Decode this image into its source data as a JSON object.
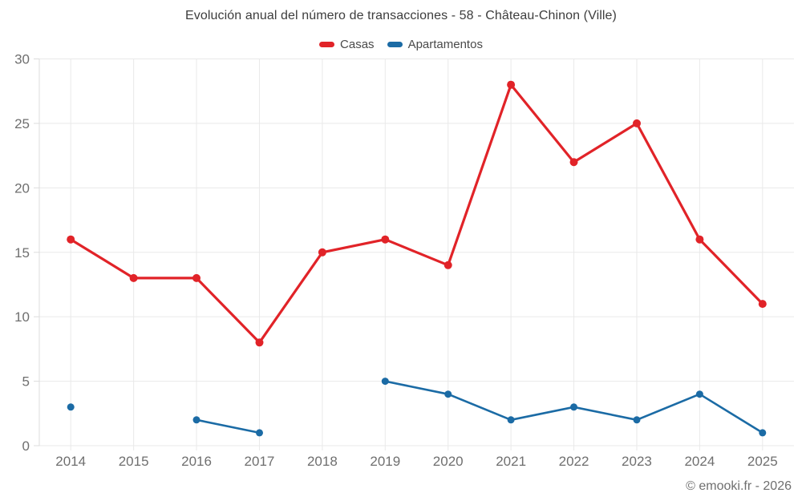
{
  "footer": {
    "credit": "© emooki.fr - 2026"
  },
  "chart_data": {
    "type": "line",
    "title": "Evolución anual del número de transacciones - 58 - Château-Chinon (Ville)",
    "categories": [
      "2014",
      "2015",
      "2016",
      "2017",
      "2018",
      "2019",
      "2020",
      "2021",
      "2022",
      "2023",
      "2024",
      "2025"
    ],
    "series": [
      {
        "name": "Casas",
        "color": "#e12328",
        "values": [
          16,
          13,
          13,
          8,
          15,
          16,
          14,
          28,
          22,
          25,
          16,
          11
        ]
      },
      {
        "name": "Apartamentos",
        "color": "#1b6ba5",
        "values": [
          3,
          null,
          2,
          1,
          null,
          5,
          4,
          2,
          3,
          2,
          4,
          1
        ]
      }
    ],
    "xlabel": "",
    "ylabel": "",
    "ylim": [
      0,
      30
    ],
    "yticks": [
      0,
      5,
      10,
      15,
      20,
      25,
      30
    ],
    "grid": true,
    "legend_position": "top",
    "tick_label_color": "#6f6f6f",
    "grid_color": "#e9e9e9",
    "axis_color": "#dcdcdc"
  }
}
